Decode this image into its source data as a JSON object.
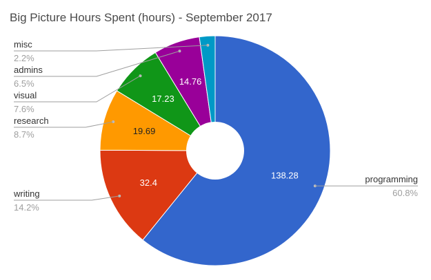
{
  "chart_data": {
    "type": "pie",
    "title": "Big Picture Hours Spent (hours) - September 2017",
    "donut": true,
    "slices": [
      {
        "name": "programming",
        "value": 138.28,
        "value_label": "138.28",
        "percent_label": "60.8%",
        "color": "#3366cc"
      },
      {
        "name": "writing",
        "value": 32.4,
        "value_label": "32.4",
        "percent_label": "14.2%",
        "color": "#dc3912"
      },
      {
        "name": "research",
        "value": 19.69,
        "value_label": "19.69",
        "percent_label": "8.7%",
        "color": "#ff9900"
      },
      {
        "name": "visual",
        "value": 17.23,
        "value_label": "17.23",
        "percent_label": "7.6%",
        "color": "#109618"
      },
      {
        "name": "admins",
        "value": 14.76,
        "value_label": "14.76",
        "percent_label": "6.5%",
        "color": "#990099"
      },
      {
        "name": "misc",
        "value": 5.0,
        "value_label": "",
        "percent_label": "2.2%",
        "color": "#0099c6"
      }
    ]
  }
}
